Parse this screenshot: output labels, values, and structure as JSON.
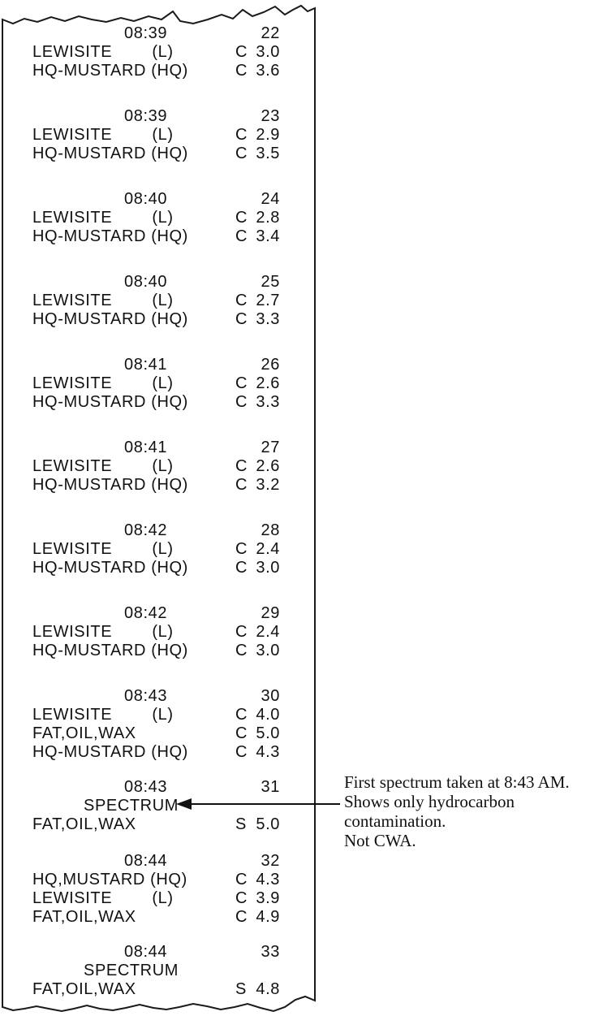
{
  "printout": {
    "spectrum_label": "SPECTRUM",
    "entries": [
      {
        "time": "08:39",
        "number": "22",
        "lines": [
          {
            "label": "LEWISITE        (L)",
            "flag": "C",
            "value": "3.0"
          },
          {
            "label": "HQ-MUSTARD (HQ)",
            "flag": "C",
            "value": "3.6"
          }
        ]
      },
      {
        "time": "08:39",
        "number": "23",
        "lines": [
          {
            "label": "LEWISITE        (L)",
            "flag": "C",
            "value": "2.9"
          },
          {
            "label": "HQ-MUSTARD (HQ)",
            "flag": "C",
            "value": "3.5"
          }
        ]
      },
      {
        "time": "08:40",
        "number": "24",
        "lines": [
          {
            "label": "LEWISITE        (L)",
            "flag": "C",
            "value": "2.8"
          },
          {
            "label": "HQ-MUSTARD (HQ)",
            "flag": "C",
            "value": "3.4"
          }
        ]
      },
      {
        "time": "08:40",
        "number": "25",
        "lines": [
          {
            "label": "LEWISITE        (L)",
            "flag": "C",
            "value": "2.7"
          },
          {
            "label": "HQ-MUSTARD (HQ)",
            "flag": "C",
            "value": "3.3"
          }
        ]
      },
      {
        "time": "08:41",
        "number": "26",
        "lines": [
          {
            "label": "LEWISITE        (L)",
            "flag": "C",
            "value": "2.6"
          },
          {
            "label": "HQ-MUSTARD (HQ)",
            "flag": "C",
            "value": "3.3"
          }
        ]
      },
      {
        "time": "08:41",
        "number": "27",
        "lines": [
          {
            "label": "LEWISITE        (L)",
            "flag": "C",
            "value": "2.6"
          },
          {
            "label": "HQ-MUSTARD (HQ)",
            "flag": "C",
            "value": "3.2"
          }
        ]
      },
      {
        "time": "08:42",
        "number": "28",
        "lines": [
          {
            "label": "LEWISITE        (L)",
            "flag": "C",
            "value": "2.4"
          },
          {
            "label": "HQ-MUSTARD (HQ)",
            "flag": "C",
            "value": "3.0"
          }
        ]
      },
      {
        "time": "08:42",
        "number": "29",
        "lines": [
          {
            "label": "LEWISITE        (L)",
            "flag": "C",
            "value": "2.4"
          },
          {
            "label": "HQ-MUSTARD (HQ)",
            "flag": "C",
            "value": "3.0"
          }
        ]
      },
      {
        "time": "08:43",
        "number": "30",
        "lines": [
          {
            "label": "LEWISITE        (L)",
            "flag": "C",
            "value": "4.0"
          },
          {
            "label": "FAT,OIL,WAX",
            "flag": "C",
            "value": "5.0"
          },
          {
            "label": "HQ-MUSTARD (HQ)",
            "flag": "C",
            "value": "4.3"
          }
        ]
      },
      {
        "time": "08:43",
        "number": "31",
        "spectrum": "SPECTRUM",
        "lines": [
          {
            "label": "FAT,OIL,WAX",
            "flag": "S",
            "value": "5.0"
          }
        ]
      },
      {
        "time": "08:44",
        "number": "32",
        "lines": [
          {
            "label": "HQ,MUSTARD (HQ)",
            "flag": "C",
            "value": "4.3"
          },
          {
            "label": "LEWISITE        (L)",
            "flag": "C",
            "value": "3.9"
          },
          {
            "label": "FAT,OIL,WAX",
            "flag": "C",
            "value": "4.9"
          }
        ]
      },
      {
        "time": "08:44",
        "number": "33",
        "spectrum": "SPECTRUM",
        "lines": [
          {
            "label": "FAT,OIL,WAX",
            "flag": "S",
            "value": "4.8"
          }
        ]
      }
    ]
  },
  "annotation": {
    "lines": [
      "First spectrum taken at 8:43 AM.",
      "Shows only hydrocarbon",
      "contamination.",
      "Not CWA."
    ]
  },
  "colors": {
    "ink": "#111111",
    "paper": "#ffffff"
  }
}
